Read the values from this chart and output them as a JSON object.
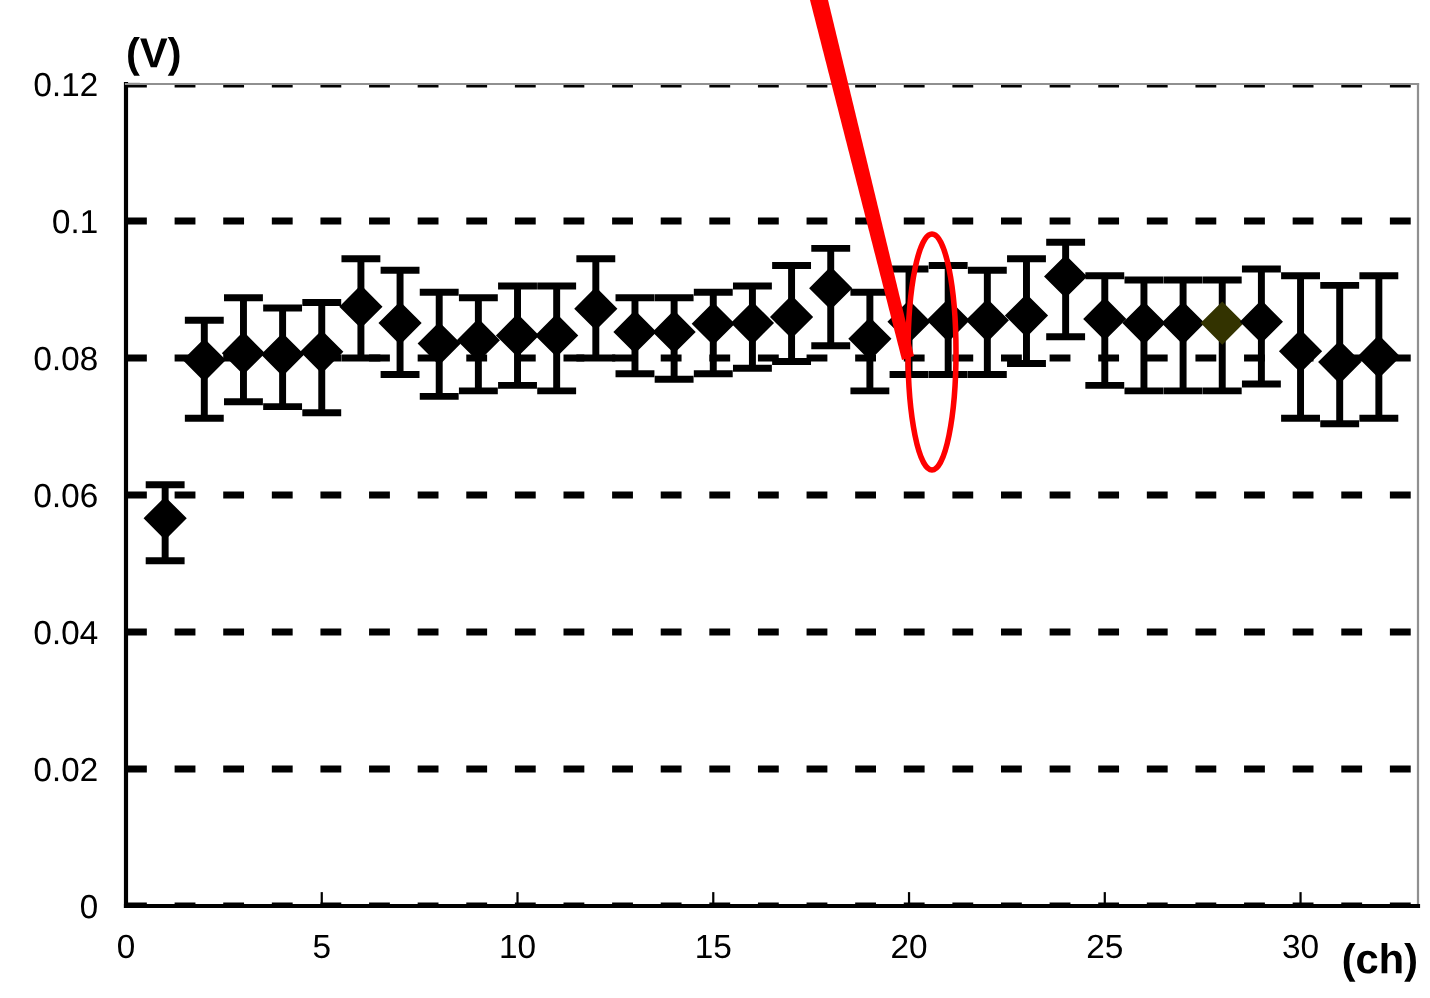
{
  "chart_data": {
    "type": "scatter",
    "xlabel": "(ch)",
    "ylabel": "(V)",
    "x": [
      1,
      2,
      3,
      4,
      5,
      6,
      7,
      8,
      9,
      10,
      11,
      12,
      13,
      14,
      15,
      16,
      17,
      18,
      19,
      20,
      21,
      22,
      23,
      24,
      25,
      26,
      27,
      28,
      29,
      30,
      31,
      32
    ],
    "values": [
      0.0566,
      0.0797,
      0.0807,
      0.0805,
      0.0809,
      0.0875,
      0.0851,
      0.0821,
      0.0826,
      0.0833,
      0.0833,
      0.0872,
      0.0838,
      0.0838,
      0.085,
      0.0851,
      0.086,
      0.0902,
      0.0828,
      0.0853,
      0.0855,
      0.0855,
      0.0862,
      0.0919,
      0.0857,
      0.0851,
      0.0851,
      0.0851,
      0.0853,
      0.081,
      0.0794,
      0.0802
    ],
    "errors": [
      [
        0.0504,
        0.0615
      ],
      [
        0.0712,
        0.0855
      ],
      [
        0.0736,
        0.0888
      ],
      [
        0.0729,
        0.0873
      ],
      [
        0.072,
        0.0881
      ],
      [
        0.08,
        0.0945
      ],
      [
        0.0776,
        0.0928
      ],
      [
        0.0744,
        0.0896
      ],
      [
        0.0752,
        0.0888
      ],
      [
        0.076,
        0.0905
      ],
      [
        0.0752,
        0.0905
      ],
      [
        0.08,
        0.0945
      ],
      [
        0.0777,
        0.0888
      ],
      [
        0.0769,
        0.0888
      ],
      [
        0.0777,
        0.0896
      ],
      [
        0.0785,
        0.0905
      ],
      [
        0.0795,
        0.0935
      ],
      [
        0.0818,
        0.096
      ],
      [
        0.0752,
        0.0896
      ],
      [
        0.0776,
        0.093
      ],
      [
        0.0776,
        0.0935
      ],
      [
        0.0776,
        0.0928
      ],
      [
        0.0792,
        0.0945
      ],
      [
        0.0831,
        0.0969
      ],
      [
        0.076,
        0.092
      ],
      [
        0.0752,
        0.0914
      ],
      [
        0.0752,
        0.0914
      ],
      [
        0.0752,
        0.0914
      ],
      [
        0.0762,
        0.093
      ],
      [
        0.0712,
        0.092
      ],
      [
        0.0704,
        0.0906
      ],
      [
        0.0712,
        0.092
      ]
    ],
    "colors": [
      "#000000",
      "#000000",
      "#000000",
      "#000000",
      "#000000",
      "#000000",
      "#000000",
      "#000000",
      "#000000",
      "#000000",
      "#000000",
      "#000000",
      "#000000",
      "#000000",
      "#000000",
      "#000000",
      "#000000",
      "#000000",
      "#000000",
      "#000000",
      "#000000",
      "#000000",
      "#000000",
      "#000000",
      "#000000",
      "#000000",
      "#000000",
      "#333300",
      "#000000",
      "#000000",
      "#000000",
      "#000000"
    ],
    "marker": "diamond",
    "grid": "y",
    "xlim": [
      0,
      33
    ],
    "xticks": [
      0,
      5,
      10,
      15,
      20,
      25,
      30
    ],
    "ylim": [
      0,
      0.12
    ],
    "yticks": [
      0,
      0.02,
      0.04,
      0.06,
      0.08,
      0.1,
      0.12
    ]
  }
}
